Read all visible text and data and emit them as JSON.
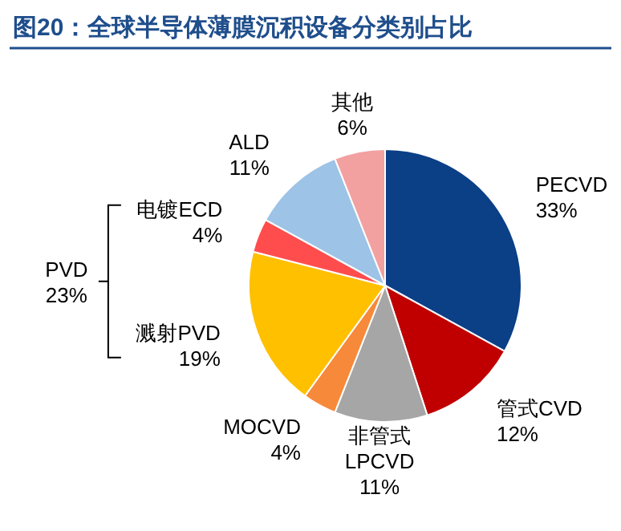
{
  "chart_data": {
    "type": "pie",
    "title": "图20：全球半导体薄膜沉积设备分类别占比",
    "categories": [
      "PECVD",
      "管式CVD",
      "非管式\nLPCVD",
      "MOCVD",
      "溅射PVD",
      "电镀ECD",
      "ALD",
      "其他"
    ],
    "values": [
      33,
      12,
      11,
      4,
      19,
      4,
      11,
      6
    ],
    "value_labels": [
      "33%",
      "12%",
      "11%",
      "4%",
      "19%",
      "4%",
      "11%",
      "6%"
    ],
    "colors": [
      "#0b3f86",
      "#c00000",
      "#a6a6a6",
      "#f7893a",
      "#ffc000",
      "#ff4d4d",
      "#9dc3e6",
      "#f2a0a0"
    ],
    "annotations": [
      "PVD\n23%"
    ]
  }
}
